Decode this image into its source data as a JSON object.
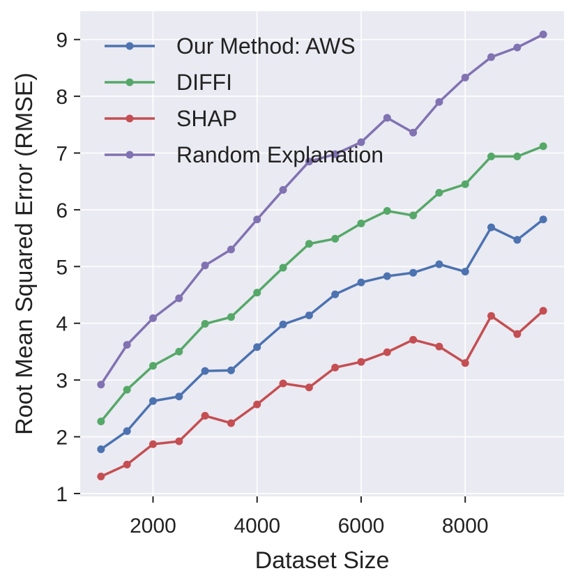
{
  "chart_data": {
    "type": "line",
    "title": "",
    "xlabel": "Dataset Size",
    "ylabel": "Root Mean Squared Error (RMSE)",
    "xlim": [
      600,
      9900
    ],
    "ylim": [
      0.95,
      9.5
    ],
    "xticks": [
      2000,
      4000,
      6000,
      8000
    ],
    "yticks": [
      1,
      2,
      3,
      4,
      5,
      6,
      7,
      8,
      9
    ],
    "grid": true,
    "legend_position": "top-left",
    "x": [
      1000,
      1500,
      2000,
      2500,
      3000,
      3500,
      4000,
      4500,
      5000,
      5500,
      6000,
      6500,
      7000,
      7500,
      8000,
      8500,
      9000,
      9500
    ],
    "series": [
      {
        "name": "Our Method: AWS",
        "color": "#4c72b0",
        "values": [
          1.78,
          2.1,
          2.63,
          2.71,
          3.16,
          3.17,
          3.58,
          3.98,
          4.14,
          4.51,
          4.72,
          4.83,
          4.89,
          5.04,
          4.91,
          5.69,
          5.47,
          5.83
        ]
      },
      {
        "name": "DIFFI",
        "color": "#55a868",
        "values": [
          2.27,
          2.83,
          3.25,
          3.5,
          3.99,
          4.11,
          4.54,
          4.98,
          5.4,
          5.49,
          5.76,
          5.98,
          5.9,
          6.3,
          6.45,
          6.94,
          6.94,
          7.12
        ]
      },
      {
        "name": "SHAP",
        "color": "#c44e52",
        "values": [
          1.3,
          1.51,
          1.87,
          1.92,
          2.37,
          2.24,
          2.57,
          2.94,
          2.87,
          3.22,
          3.32,
          3.49,
          3.71,
          3.59,
          3.3,
          4.13,
          3.81,
          4.22
        ]
      },
      {
        "name": "Random Explanation",
        "color": "#8172b2",
        "values": [
          2.92,
          3.62,
          4.09,
          4.44,
          5.02,
          5.3,
          5.83,
          6.35,
          6.85,
          6.98,
          7.19,
          7.62,
          7.36,
          7.9,
          8.33,
          8.69,
          8.86,
          9.09
        ]
      }
    ]
  }
}
